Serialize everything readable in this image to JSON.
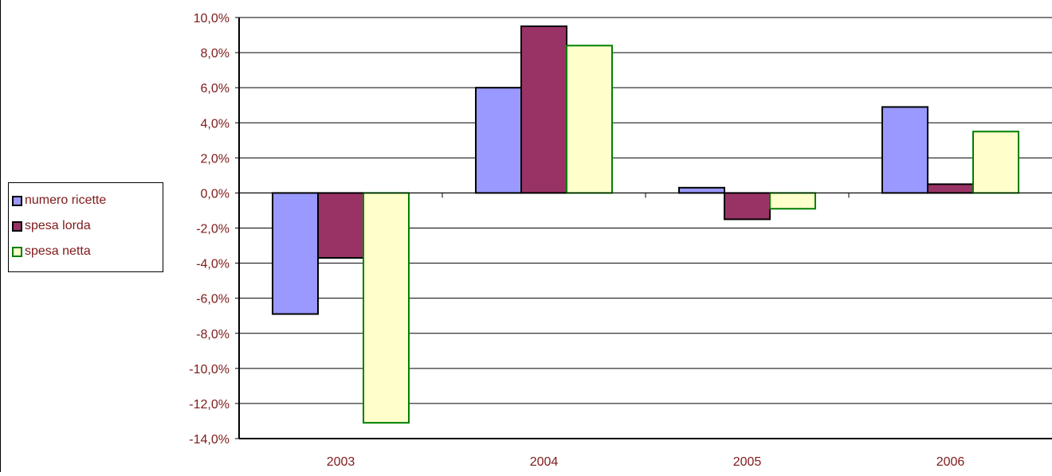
{
  "chart_data": {
    "type": "bar",
    "categories": [
      "2003",
      "2004",
      "2005",
      "2006"
    ],
    "series": [
      {
        "name": "numero ricette",
        "values": [
          -6.9,
          6.0,
          0.3,
          4.9
        ],
        "fill": "#9999ff",
        "stroke": "#000000"
      },
      {
        "name": "spesa lorda",
        "values": [
          -3.7,
          9.5,
          -1.5,
          0.5
        ],
        "fill": "#993366",
        "stroke": "#000000"
      },
      {
        "name": "spesa netta",
        "values": [
          -13.1,
          8.4,
          -0.9,
          3.5
        ],
        "fill": "#ffffcc",
        "stroke": "#008000"
      }
    ],
    "y_ticks": [
      "10,0%",
      "8,0%",
      "6,0%",
      "4,0%",
      "2,0%",
      "0,0%",
      "-2,0%",
      "-4,0%",
      "-6,0%",
      "-8,0%",
      "-10,0%",
      "-12,0%",
      "-14,0%"
    ],
    "ylim": [
      -14,
      10
    ],
    "grid": true,
    "legend_position": "left",
    "text_color": "#7f1a1a"
  },
  "legend": {
    "items": [
      {
        "label": "numero ricette",
        "fill": "#9999ff",
        "border": "#000000"
      },
      {
        "label": "spesa lorda",
        "fill": "#993366",
        "border": "#000000"
      },
      {
        "label": "spesa netta",
        "fill": "#ffffcc",
        "border": "#008000"
      }
    ]
  }
}
